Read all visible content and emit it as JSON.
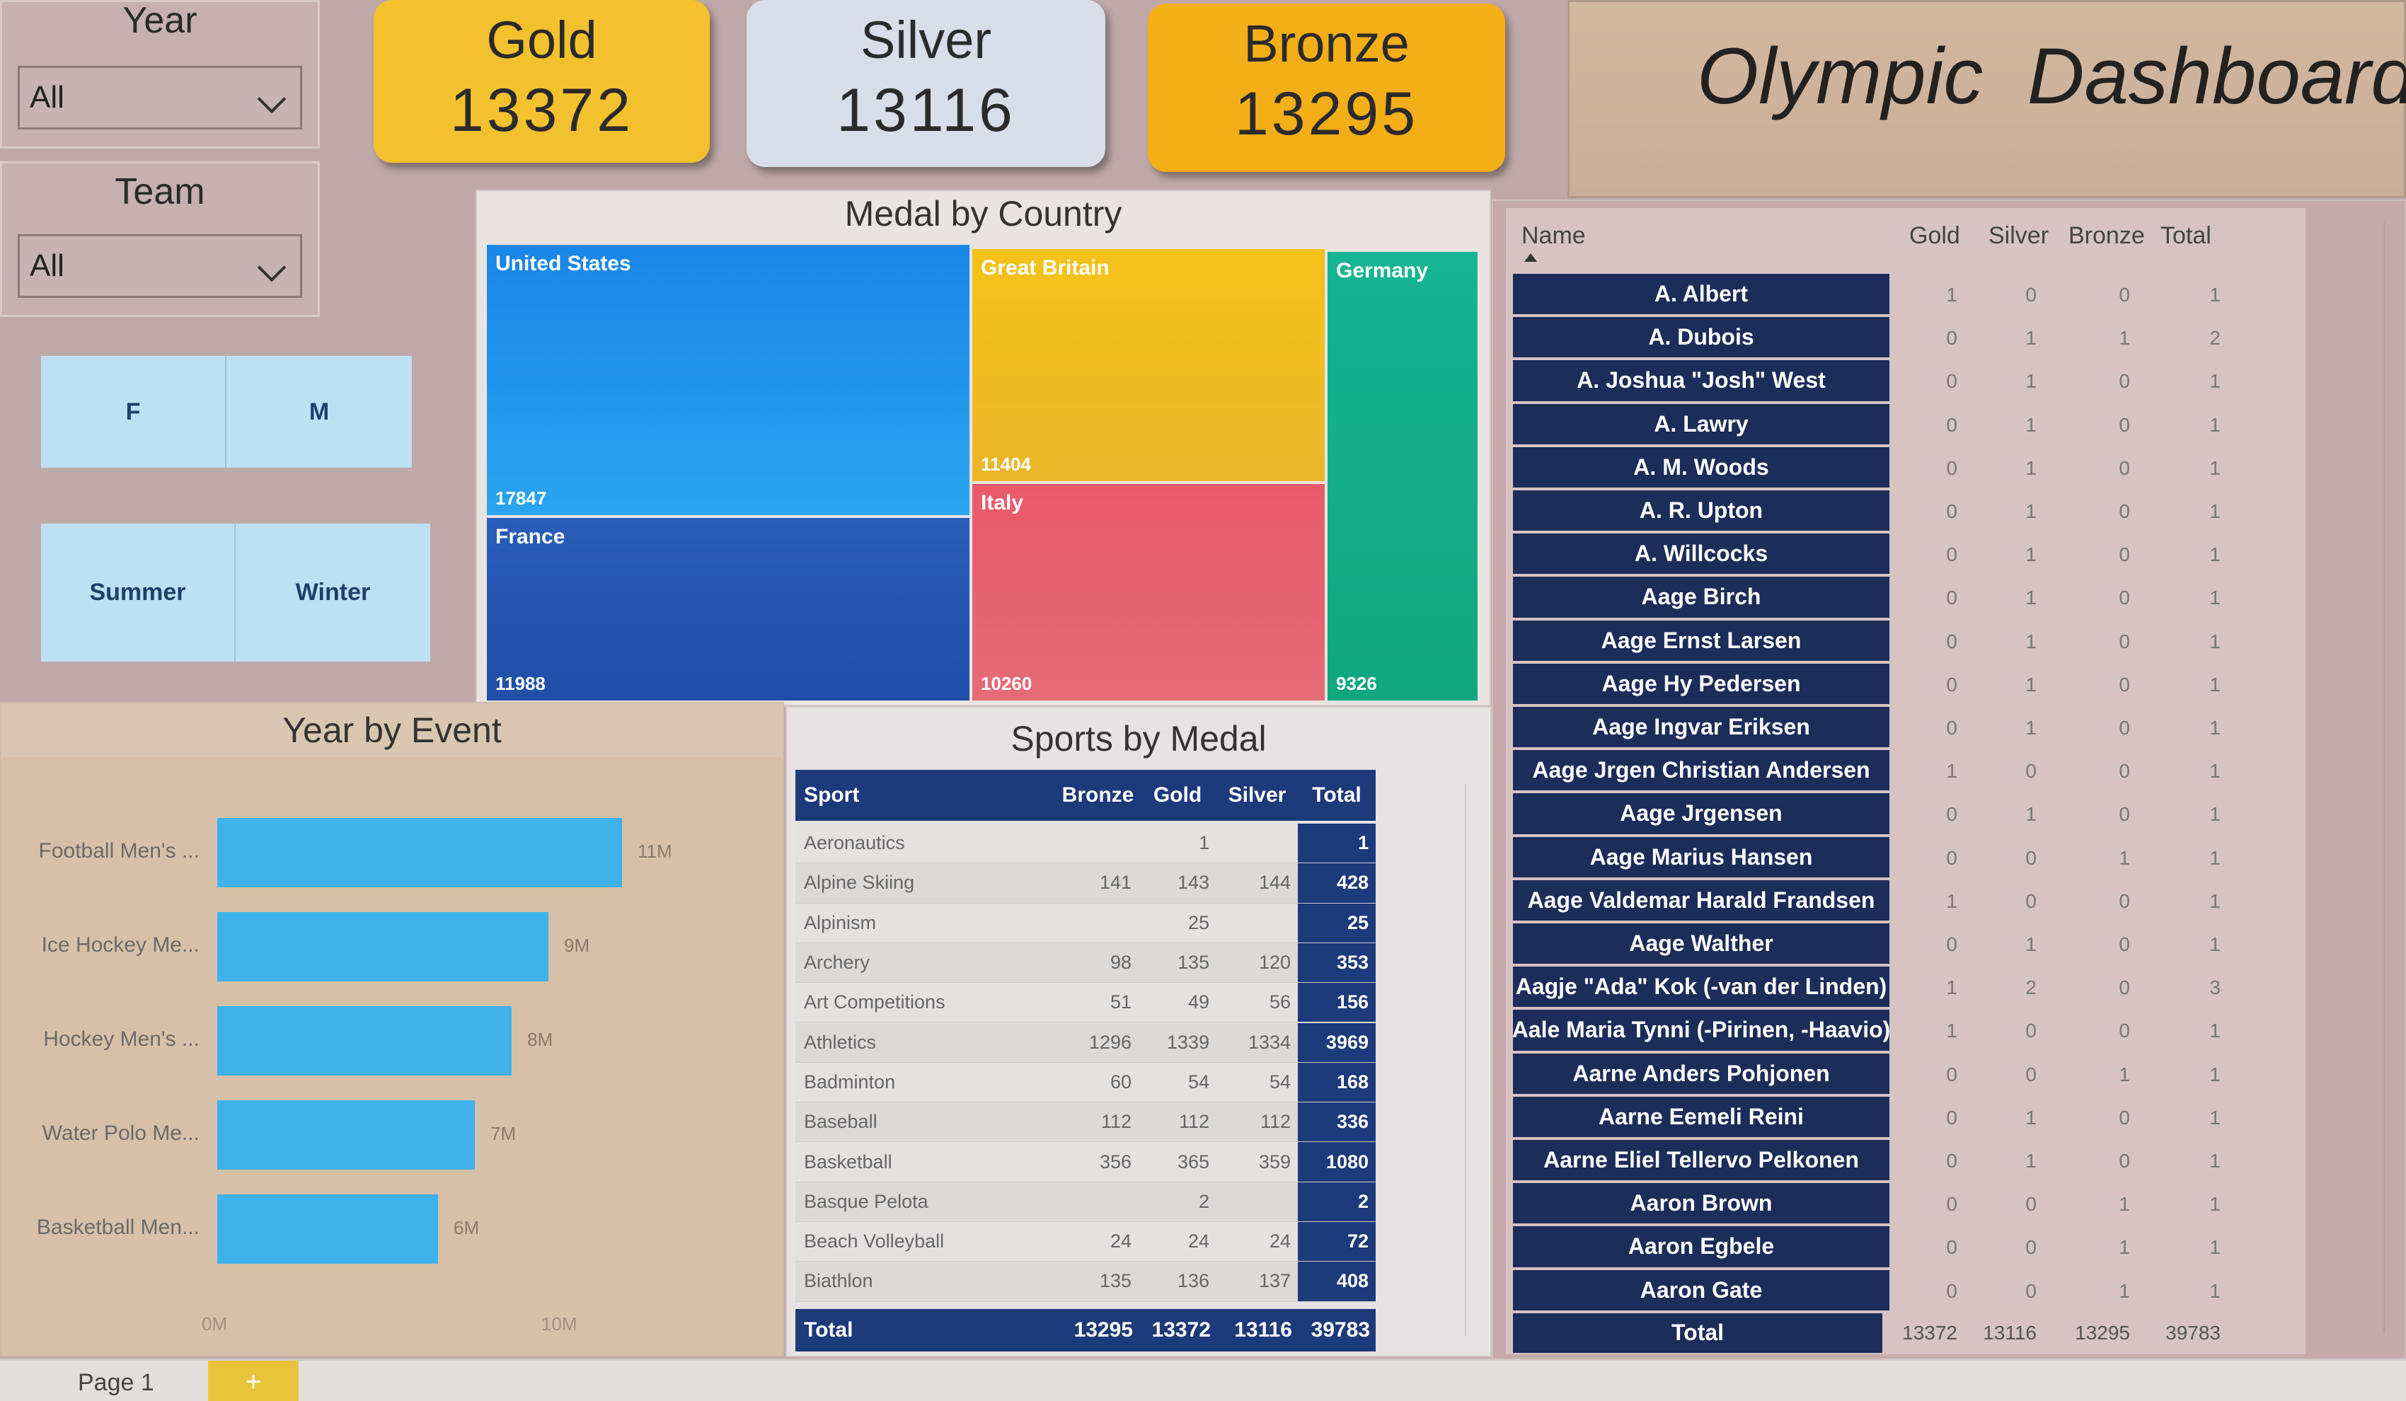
{
  "filters": {
    "year": {
      "title": "Year",
      "value": "All"
    },
    "team": {
      "title": "Team",
      "value": "All"
    },
    "sex_buttons": [
      "F",
      "M"
    ],
    "season_buttons": [
      "Summer",
      "Winter"
    ]
  },
  "kpis": [
    {
      "label": "Gold",
      "value": "13372",
      "color": "#f3c12e"
    },
    {
      "label": "Silver",
      "value": "13116",
      "color": "#d7dde9"
    },
    {
      "label": "Bronze",
      "value": "13295",
      "color": "#f3ae18"
    }
  ],
  "dashboard_title": "Olympic  Dashboard",
  "treemap": {
    "title": "Medal by Country",
    "cells": [
      {
        "name": "United States",
        "value": "17847",
        "color": "#1f8fe6"
      },
      {
        "name": "France",
        "value": "11988",
        "color": "#2a5db8"
      },
      {
        "name": "Great Britain",
        "value": "11404",
        "color": "#f2c21d"
      },
      {
        "name": "Italy",
        "value": "10260",
        "color": "#e8606e"
      },
      {
        "name": "Germany",
        "value": "9326",
        "color": "#14b38a"
      }
    ]
  },
  "year_by_event": {
    "title": "Year by Event",
    "chart_data": {
      "type": "bar",
      "categories": [
        "Football Men's ...",
        "Ice Hockey Me...",
        "Hockey Men's ...",
        "Water Polo Me...",
        "Basketball Men..."
      ],
      "values": [
        11000000,
        9000000,
        8000000,
        7000000,
        6000000
      ],
      "value_labels": [
        "11M",
        "9M",
        "8M",
        "7M",
        "6M"
      ],
      "x_ticks": [
        "0M",
        "10M"
      ],
      "xlim": [
        0,
        10000000
      ]
    }
  },
  "sports_by_medal": {
    "title": "Sports by Medal",
    "columns": [
      "Sport",
      "Bronze",
      "Gold",
      "Silver",
      "Total"
    ],
    "rows": [
      [
        "Aeronautics",
        "",
        "1",
        "",
        "1"
      ],
      [
        "Alpine Skiing",
        "141",
        "143",
        "144",
        "428"
      ],
      [
        "Alpinism",
        "",
        "25",
        "",
        "25"
      ],
      [
        "Archery",
        "98",
        "135",
        "120",
        "353"
      ],
      [
        "Art Competitions",
        "51",
        "49",
        "56",
        "156"
      ],
      [
        "Athletics",
        "1296",
        "1339",
        "1334",
        "3969"
      ],
      [
        "Badminton",
        "60",
        "54",
        "54",
        "168"
      ],
      [
        "Baseball",
        "112",
        "112",
        "112",
        "336"
      ],
      [
        "Basketball",
        "356",
        "365",
        "359",
        "1080"
      ],
      [
        "Basque Pelota",
        "",
        "2",
        "",
        "2"
      ],
      [
        "Beach Volleyball",
        "24",
        "24",
        "24",
        "72"
      ],
      [
        "Biathlon",
        "135",
        "136",
        "137",
        "408"
      ]
    ],
    "total": [
      "Total",
      "13295",
      "13372",
      "13116",
      "39783"
    ]
  },
  "athletes": {
    "columns": [
      "Name",
      "Gold",
      "Silver",
      "Bronze",
      "Total"
    ],
    "rows": [
      [
        "A. Albert",
        "1",
        "0",
        "0",
        "1"
      ],
      [
        "A. Dubois",
        "0",
        "1",
        "1",
        "2"
      ],
      [
        "A. Joshua \"Josh\" West",
        "0",
        "1",
        "0",
        "1"
      ],
      [
        "A. Lawry",
        "0",
        "1",
        "0",
        "1"
      ],
      [
        "A. M. Woods",
        "0",
        "1",
        "0",
        "1"
      ],
      [
        "A. R. Upton",
        "0",
        "1",
        "0",
        "1"
      ],
      [
        "A. Willcocks",
        "0",
        "1",
        "0",
        "1"
      ],
      [
        "Aage Birch",
        "0",
        "1",
        "0",
        "1"
      ],
      [
        "Aage Ernst Larsen",
        "0",
        "1",
        "0",
        "1"
      ],
      [
        "Aage Hy Pedersen",
        "0",
        "1",
        "0",
        "1"
      ],
      [
        "Aage Ingvar Eriksen",
        "0",
        "1",
        "0",
        "1"
      ],
      [
        "Aage Jrgen Christian Andersen",
        "1",
        "0",
        "0",
        "1"
      ],
      [
        "Aage Jrgensen",
        "0",
        "1",
        "0",
        "1"
      ],
      [
        "Aage Marius Hansen",
        "0",
        "0",
        "1",
        "1"
      ],
      [
        "Aage Valdemar Harald Frandsen",
        "1",
        "0",
        "0",
        "1"
      ],
      [
        "Aage Walther",
        "0",
        "1",
        "0",
        "1"
      ],
      [
        "Aagje \"Ada\" Kok (-van der Linden)",
        "1",
        "2",
        "0",
        "3"
      ],
      [
        "Aale Maria Tynni (-Pirinen, -Haavio)",
        "1",
        "0",
        "0",
        "1"
      ],
      [
        "Aarne Anders Pohjonen",
        "0",
        "0",
        "1",
        "1"
      ],
      [
        "Aarne Eemeli Reini",
        "0",
        "1",
        "0",
        "1"
      ],
      [
        "Aarne Eliel Tellervo Pelkonen",
        "0",
        "1",
        "0",
        "1"
      ],
      [
        "Aaron Brown",
        "0",
        "0",
        "1",
        "1"
      ],
      [
        "Aaron Egbele",
        "0",
        "0",
        "1",
        "1"
      ],
      [
        "Aaron Gate",
        "0",
        "0",
        "1",
        "1"
      ]
    ],
    "total": [
      "Total",
      "13372",
      "13116",
      "13295",
      "39783"
    ]
  },
  "footer": {
    "page_tab": "Page 1",
    "add_tab": "+"
  }
}
